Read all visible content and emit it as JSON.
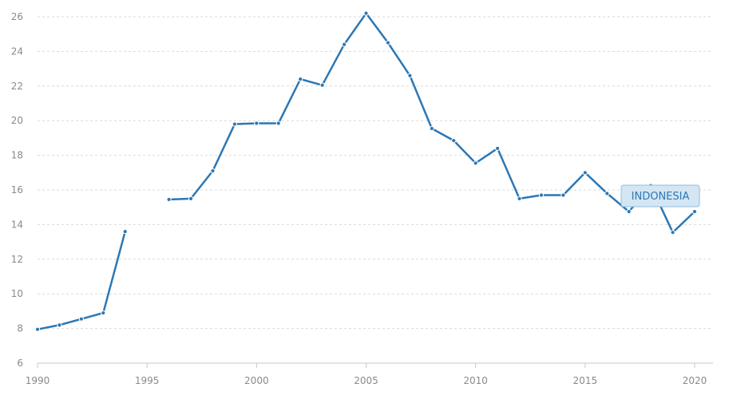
{
  "chart_data": {
    "type": "line",
    "title": "",
    "xlabel": "",
    "ylabel": "",
    "xlim": [
      1990,
      2020
    ],
    "ylim": [
      6,
      26
    ],
    "x_ticks": [
      1990,
      1995,
      2000,
      2005,
      2010,
      2015,
      2020
    ],
    "y_ticks": [
      6,
      8,
      10,
      12,
      14,
      16,
      18,
      20,
      22,
      24,
      26
    ],
    "grid": "horizontal-dashed",
    "series": [
      {
        "name": "INDONESIA",
        "color": "#2d77b3",
        "points": [
          {
            "x": 1990,
            "y": 7.95
          },
          {
            "x": 1991,
            "y": 8.2
          },
          {
            "x": 1992,
            "y": 8.55
          },
          {
            "x": 1993,
            "y": 8.9
          },
          {
            "x": 1994,
            "y": 13.6
          },
          {
            "x": 1995,
            "y": null
          },
          {
            "x": 1996,
            "y": 15.45
          },
          {
            "x": 1997,
            "y": 15.5
          },
          {
            "x": 1998,
            "y": 17.1
          },
          {
            "x": 1999,
            "y": 19.8
          },
          {
            "x": 2000,
            "y": 19.85
          },
          {
            "x": 2001,
            "y": 19.85
          },
          {
            "x": 2002,
            "y": 22.4
          },
          {
            "x": 2003,
            "y": 22.05
          },
          {
            "x": 2004,
            "y": 24.4
          },
          {
            "x": 2005,
            "y": 26.2
          },
          {
            "x": 2006,
            "y": 24.5
          },
          {
            "x": 2007,
            "y": 22.6
          },
          {
            "x": 2008,
            "y": 19.55
          },
          {
            "x": 2009,
            "y": 18.85
          },
          {
            "x": 2010,
            "y": 17.55
          },
          {
            "x": 2011,
            "y": 18.4
          },
          {
            "x": 2012,
            "y": 15.5
          },
          {
            "x": 2013,
            "y": 15.7
          },
          {
            "x": 2014,
            "y": 15.7
          },
          {
            "x": 2015,
            "y": 17.0
          },
          {
            "x": 2016,
            "y": 15.8
          },
          {
            "x": 2017,
            "y": 14.75
          },
          {
            "x": 2018,
            "y": 16.25
          },
          {
            "x": 2019,
            "y": 13.55
          },
          {
            "x": 2020,
            "y": 14.75
          }
        ]
      }
    ],
    "tooltip": {
      "label": "INDONESIA"
    }
  }
}
